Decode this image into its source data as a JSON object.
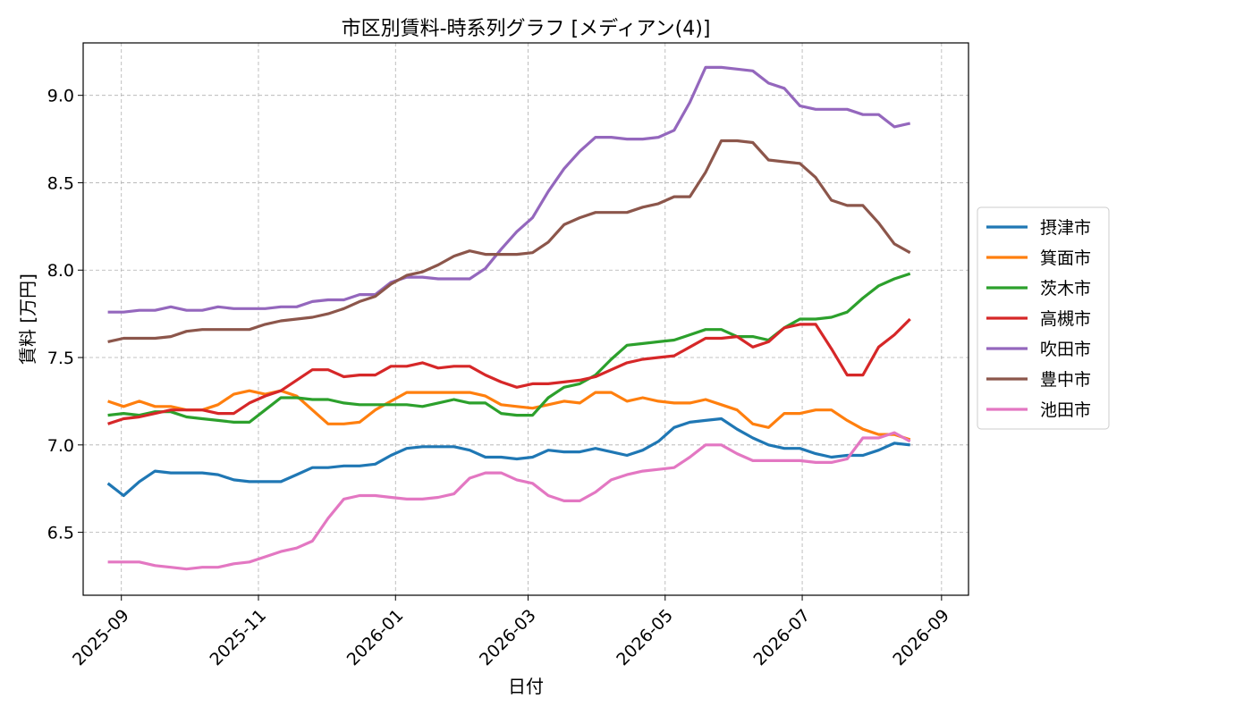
{
  "chart_data": {
    "type": "line",
    "title": "市区別賃料-時系列グラフ [メディアン(4)]",
    "xlabel": "日付",
    "ylabel": "賃料 [万円]",
    "xlim": [
      "2025-08-15",
      "2026-09-13"
    ],
    "ylim": [
      6.14,
      9.3
    ],
    "grid": true,
    "legend_position": "right",
    "x_ticks": [
      "2025-09",
      "2025-11",
      "2026-01",
      "2026-03",
      "2026-05",
      "2026-07",
      "2026-09"
    ],
    "y_ticks": [
      6.5,
      7.0,
      7.5,
      8.0,
      8.5,
      9.0
    ],
    "x": [
      "2025-08-26",
      "2025-09-02",
      "2025-09-09",
      "2025-09-16",
      "2025-09-23",
      "2025-09-30",
      "2025-10-07",
      "2025-10-14",
      "2025-10-21",
      "2025-10-28",
      "2025-11-04",
      "2025-11-11",
      "2025-11-18",
      "2025-11-25",
      "2025-12-02",
      "2025-12-09",
      "2025-12-16",
      "2025-12-23",
      "2025-12-30",
      "2026-01-06",
      "2026-01-13",
      "2026-01-20",
      "2026-01-27",
      "2026-02-03",
      "2026-02-10",
      "2026-02-17",
      "2026-02-24",
      "2026-03-03",
      "2026-03-10",
      "2026-03-17",
      "2026-03-24",
      "2026-03-31",
      "2026-04-07",
      "2026-04-14",
      "2026-04-21",
      "2026-04-28",
      "2026-05-05",
      "2026-05-12",
      "2026-05-19",
      "2026-05-26",
      "2026-06-02",
      "2026-06-09",
      "2026-06-16",
      "2026-06-23",
      "2026-06-30",
      "2026-07-07",
      "2026-07-14",
      "2026-07-21",
      "2026-07-28",
      "2026-08-04",
      "2026-08-11",
      "2026-08-18"
    ],
    "series": [
      {
        "name": "摂津市",
        "color": "#1f77b4",
        "values": [
          6.78,
          6.71,
          6.79,
          6.85,
          6.84,
          6.84,
          6.84,
          6.83,
          6.8,
          6.79,
          6.79,
          6.79,
          6.83,
          6.87,
          6.87,
          6.88,
          6.88,
          6.89,
          6.94,
          6.98,
          6.99,
          6.99,
          6.99,
          6.97,
          6.93,
          6.93,
          6.92,
          6.93,
          6.97,
          6.96,
          6.96,
          6.98,
          6.96,
          6.94,
          6.97,
          7.02,
          7.1,
          7.13,
          7.14,
          7.15,
          7.09,
          7.04,
          7.0,
          6.98,
          6.98,
          6.95,
          6.93,
          6.94,
          6.94,
          6.97,
          7.01,
          7.0
        ]
      },
      {
        "name": "箕面市",
        "color": "#ff7f0e",
        "values": [
          7.25,
          7.22,
          7.25,
          7.22,
          7.22,
          7.2,
          7.2,
          7.23,
          7.29,
          7.31,
          7.29,
          7.31,
          7.28,
          7.2,
          7.12,
          7.12,
          7.13,
          7.2,
          7.25,
          7.3,
          7.3,
          7.3,
          7.3,
          7.3,
          7.28,
          7.23,
          7.22,
          7.21,
          7.23,
          7.25,
          7.24,
          7.3,
          7.3,
          7.25,
          7.27,
          7.25,
          7.24,
          7.24,
          7.26,
          7.23,
          7.2,
          7.12,
          7.1,
          7.18,
          7.18,
          7.2,
          7.2,
          7.14,
          7.09,
          7.06,
          7.06,
          7.03
        ]
      },
      {
        "name": "茨木市",
        "color": "#2ca02c",
        "values": [
          7.17,
          7.18,
          7.17,
          7.19,
          7.19,
          7.16,
          7.15,
          7.14,
          7.13,
          7.13,
          7.2,
          7.27,
          7.27,
          7.26,
          7.26,
          7.24,
          7.23,
          7.23,
          7.23,
          7.23,
          7.22,
          7.24,
          7.26,
          7.24,
          7.24,
          7.18,
          7.17,
          7.17,
          7.27,
          7.33,
          7.35,
          7.4,
          7.49,
          7.57,
          7.58,
          7.59,
          7.6,
          7.63,
          7.66,
          7.66,
          7.62,
          7.62,
          7.6,
          7.67,
          7.72,
          7.72,
          7.73,
          7.76,
          7.84,
          7.91,
          7.95,
          7.98
        ]
      },
      {
        "name": "高槻市",
        "color": "#d62728",
        "values": [
          7.12,
          7.15,
          7.16,
          7.18,
          7.2,
          7.2,
          7.2,
          7.18,
          7.18,
          7.24,
          7.28,
          7.31,
          7.37,
          7.43,
          7.43,
          7.39,
          7.4,
          7.4,
          7.45,
          7.45,
          7.47,
          7.44,
          7.45,
          7.45,
          7.4,
          7.36,
          7.33,
          7.35,
          7.35,
          7.36,
          7.37,
          7.39,
          7.43,
          7.47,
          7.49,
          7.5,
          7.51,
          7.56,
          7.61,
          7.61,
          7.62,
          7.56,
          7.59,
          7.67,
          7.69,
          7.69,
          7.55,
          7.4,
          7.4,
          7.56,
          7.63,
          7.72
        ]
      },
      {
        "name": "吹田市",
        "color": "#9467bd",
        "values": [
          7.76,
          7.76,
          7.77,
          7.77,
          7.79,
          7.77,
          7.77,
          7.79,
          7.78,
          7.78,
          7.78,
          7.79,
          7.79,
          7.82,
          7.83,
          7.83,
          7.86,
          7.86,
          7.93,
          7.96,
          7.96,
          7.95,
          7.95,
          7.95,
          8.01,
          8.12,
          8.22,
          8.3,
          8.45,
          8.58,
          8.68,
          8.76,
          8.76,
          8.75,
          8.75,
          8.76,
          8.8,
          8.96,
          9.16,
          9.16,
          9.15,
          9.14,
          9.07,
          9.04,
          8.94,
          8.92,
          8.92,
          8.92,
          8.89,
          8.89,
          8.82,
          8.84
        ]
      },
      {
        "name": "豊中市",
        "color": "#8c564b",
        "values": [
          7.59,
          7.61,
          7.61,
          7.61,
          7.62,
          7.65,
          7.66,
          7.66,
          7.66,
          7.66,
          7.69,
          7.71,
          7.72,
          7.73,
          7.75,
          7.78,
          7.82,
          7.85,
          7.92,
          7.97,
          7.99,
          8.03,
          8.08,
          8.11,
          8.09,
          8.09,
          8.09,
          8.1,
          8.16,
          8.26,
          8.3,
          8.33,
          8.33,
          8.33,
          8.36,
          8.38,
          8.42,
          8.42,
          8.56,
          8.74,
          8.74,
          8.73,
          8.63,
          8.62,
          8.61,
          8.53,
          8.4,
          8.37,
          8.37,
          8.27,
          8.15,
          8.1
        ]
      },
      {
        "name": "池田市",
        "color": "#e377c2",
        "values": [
          6.33,
          6.33,
          6.33,
          6.31,
          6.3,
          6.29,
          6.3,
          6.3,
          6.32,
          6.33,
          6.36,
          6.39,
          6.41,
          6.45,
          6.58,
          6.69,
          6.71,
          6.71,
          6.7,
          6.69,
          6.69,
          6.7,
          6.72,
          6.81,
          6.84,
          6.84,
          6.8,
          6.78,
          6.71,
          6.68,
          6.68,
          6.73,
          6.8,
          6.83,
          6.85,
          6.86,
          6.87,
          6.93,
          7.0,
          7.0,
          6.95,
          6.91,
          6.91,
          6.91,
          6.91,
          6.9,
          6.9,
          6.92,
          7.04,
          7.04,
          7.07,
          7.02
        ]
      }
    ]
  }
}
